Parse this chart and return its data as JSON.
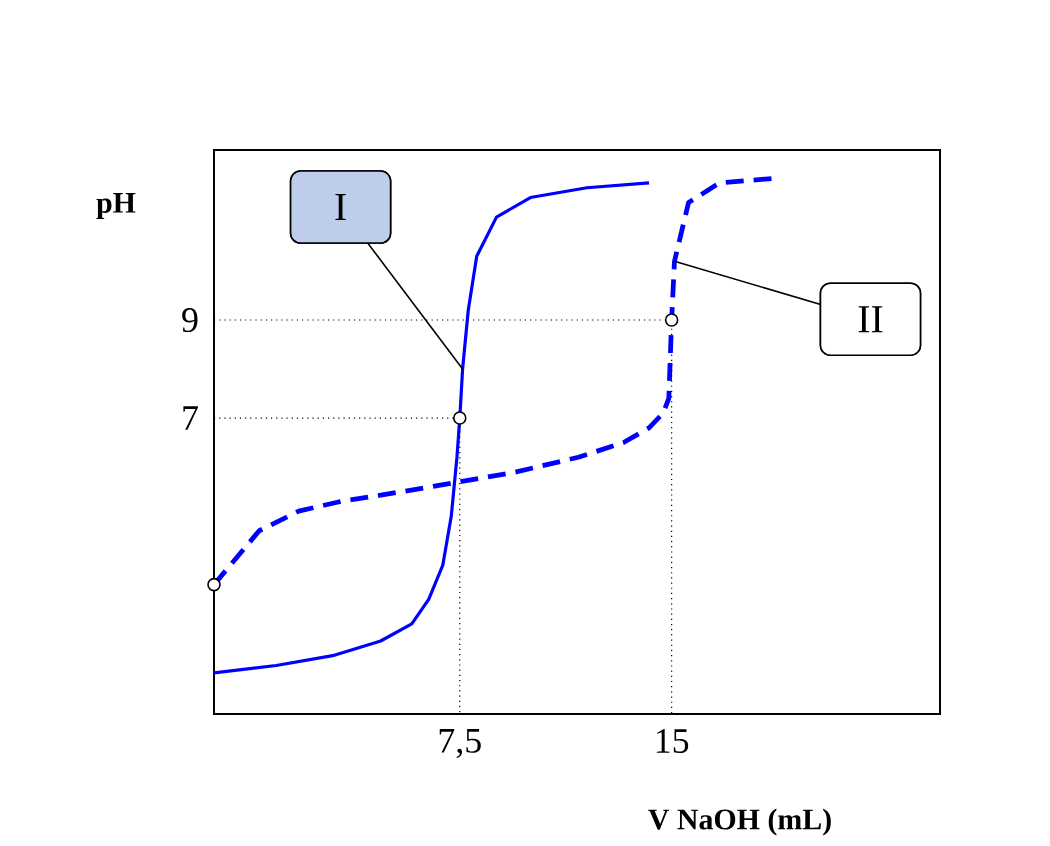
{
  "chart_data": {
    "type": "line",
    "xlabel": "V NaOH (mL)",
    "ylabel": "pH",
    "xlim": [
      -1.2,
      24.5
    ],
    "ylim": [
      0.96,
      12.47
    ],
    "xticks": [
      {
        "value": 7.5,
        "label": "7,5"
      },
      15
    ],
    "yticks": [
      7,
      9
    ],
    "series": [
      {
        "color": "#0000ff",
        "line_style": "solid",
        "x": [
          -1.2,
          1,
          3,
          4.7,
          5.8,
          6.4,
          6.9,
          7.2,
          7.4,
          7.5,
          7.6,
          7.8,
          8.1,
          8.8,
          10,
          12,
          14.2
        ],
        "values": [
          1.8,
          1.95,
          2.15,
          2.45,
          2.8,
          3.3,
          4.0,
          5.0,
          6.2,
          7.0,
          8.0,
          9.2,
          10.3,
          11.1,
          11.5,
          11.7,
          11.8
        ]
      },
      {
        "color": "#0000ff",
        "line_style": "dashed",
        "x": [
          -1.2,
          0.4,
          1.8,
          3.3,
          5.5,
          7.5,
          9.5,
          11.7,
          13.3,
          14.2,
          14.7,
          14.9,
          15.0,
          15.1,
          15.6,
          16.7,
          18.8
        ],
        "values": [
          3.6,
          4.7,
          5.1,
          5.3,
          5.5,
          5.7,
          5.9,
          6.2,
          6.5,
          6.8,
          7.1,
          7.4,
          9.0,
          10.2,
          11.4,
          11.8,
          11.9
        ]
      },
      {
        "color": "#000000",
        "line_style": "dotted",
        "x": [
          -1.2,
          7.5,
          7.5
        ],
        "values": [
          7,
          7,
          0.96
        ]
      },
      {
        "color": "#000000",
        "line_style": "dotted",
        "x": [
          -1.2,
          15,
          15
        ],
        "values": [
          9,
          9,
          0.96
        ]
      },
      {
        "type": "scatter",
        "color": "#000000",
        "marker": "circle",
        "x": [
          -1.2,
          7.5,
          15
        ],
        "values": [
          3.6,
          7,
          9
        ]
      }
    ],
    "annotations": [
      {
        "text": "I",
        "x": 7.6,
        "y": 8.0
      },
      {
        "text": "II",
        "x": 15.1,
        "y": 10.2
      }
    ]
  }
}
